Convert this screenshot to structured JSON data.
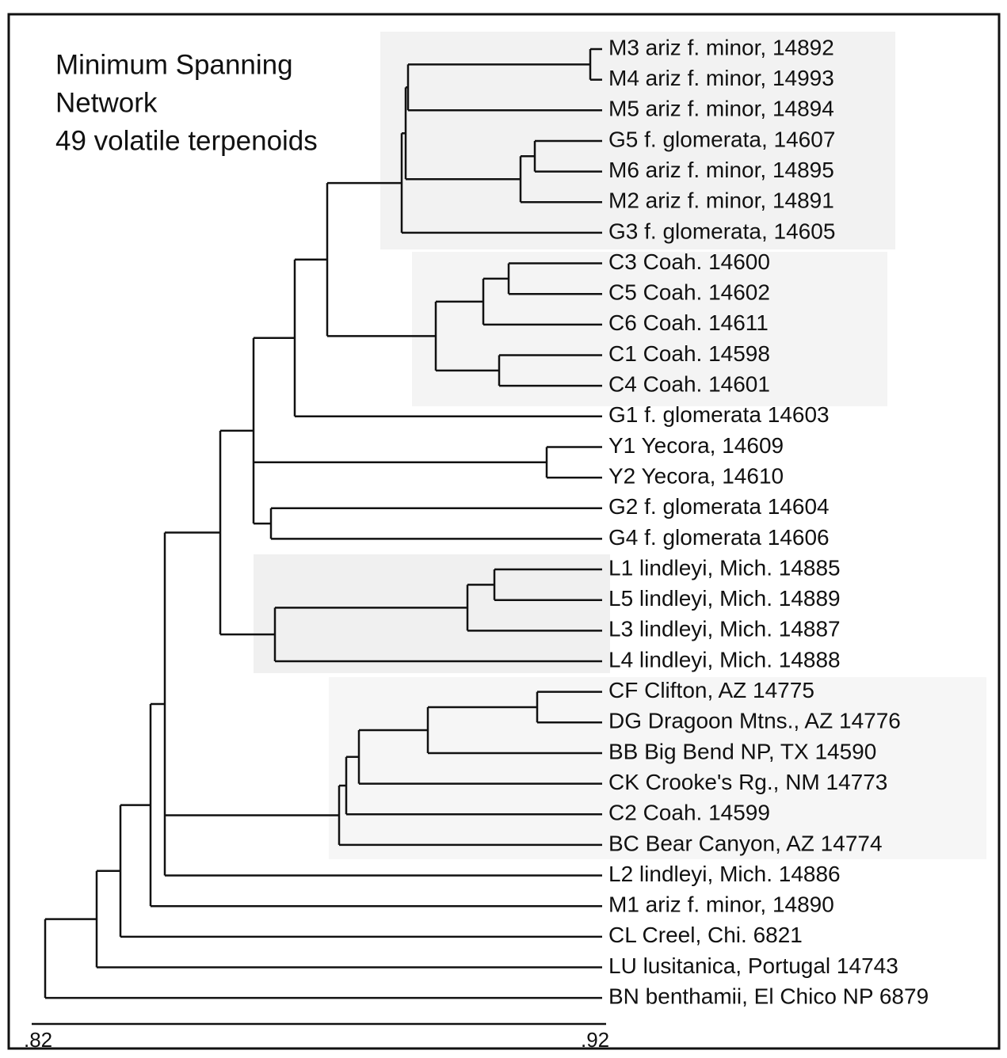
{
  "title": [
    "Minimum Spanning",
    "Network",
    "49 volatile terpenoids"
  ],
  "leaves": [
    "M3 ariz f. minor, 14892",
    "M4 ariz f. minor, 14993",
    "M5 ariz f. minor, 14894",
    "G5 f. glomerata, 14607",
    "M6 ariz f. minor, 14895",
    "M2 ariz f. minor, 14891",
    "G3 f. glomerata, 14605",
    "C3 Coah. 14600",
    "C5 Coah. 14602",
    "C6 Coah. 14611",
    "C1 Coah. 14598",
    "C4 Coah. 14601",
    "G1 f. glomerata 14603",
    "Y1 Yecora, 14609",
    "Y2 Yecora, 14610",
    "G2 f. glomerata 14604",
    "G4 f. glomerata 14606",
    "L1 lindleyi, Mich. 14885",
    "L5 lindleyi, Mich. 14889",
    "L3 lindleyi, Mich. 14887",
    "L4 lindleyi, Mich. 14888",
    "CF Clifton, AZ 14775",
    "DG Dragoon Mtns., AZ 14776",
    "BB Big Bend NP, TX 14590",
    "CK Crooke's Rg., NM 14773",
    "C2 Coah. 14599",
    "BC Bear Canyon, AZ 14774",
    "L2 lindleyi, Mich. 14886",
    "M1 ariz f. minor, 14890",
    "CL Creel, Chi. 6821",
    "LU lusitanica, Portugal 14743",
    "BN benthamii, El Chico NP 6879"
  ],
  "axis": {
    "ticks": [
      ".82",
      ".92"
    ]
  }
}
